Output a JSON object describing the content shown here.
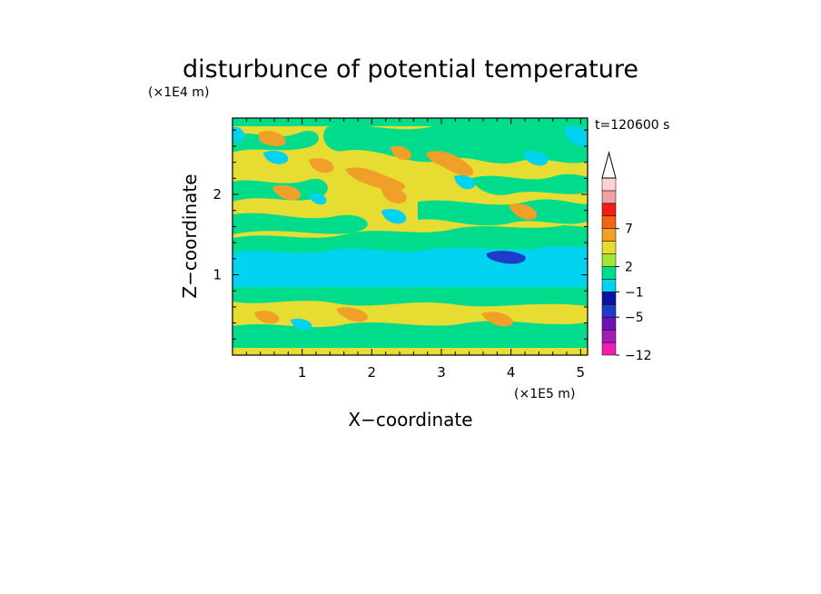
{
  "chart_data": {
    "type": "heatmap",
    "title": "disturbunce of potential temperature",
    "ylabel": "Z−coordinate",
    "xlabel": "X−coordinate",
    "y_unit": "(×1E4 m)",
    "x_unit": "(×1E5 m)",
    "time_label": "t=120600 s",
    "x_ticks": [
      1,
      2,
      3,
      4,
      5
    ],
    "y_ticks": [
      1,
      2
    ],
    "xlim": [
      0,
      5.1
    ],
    "ylim": [
      0,
      2.95
    ],
    "colorbar": {
      "levels": [
        -12,
        -5,
        -1,
        2,
        7
      ],
      "tick_labels": [
        "−12",
        "−5",
        "−1",
        "2",
        "7"
      ],
      "colors": [
        "#f01eb4",
        "#a01eb4",
        "#6e14b4",
        "#1e3cc8",
        "#0a14a0",
        "#00d2f0",
        "#00dc8c",
        "#a0e632",
        "#e6dc32",
        "#f0a028",
        "#f06414",
        "#f01e14",
        "#f0a0a0",
        "#ffd2d2"
      ],
      "extend": "max"
    },
    "field_bands": [
      {
        "z": [
          0.0,
          0.1
        ],
        "level": "yellow"
      },
      {
        "z": [
          0.1,
          0.35
        ],
        "level": "green"
      },
      {
        "z": [
          0.35,
          0.75
        ],
        "level": "yellow"
      },
      {
        "z": [
          0.75,
          0.85
        ],
        "level": "green"
      },
      {
        "z": [
          0.85,
          1.3
        ],
        "level": "cyan"
      },
      {
        "z": [
          1.3,
          1.45
        ],
        "level": "green"
      },
      {
        "z": [
          1.45,
          2.85
        ],
        "level": "yellow"
      },
      {
        "z": [
          2.85,
          2.95
        ],
        "level": "green"
      }
    ]
  }
}
